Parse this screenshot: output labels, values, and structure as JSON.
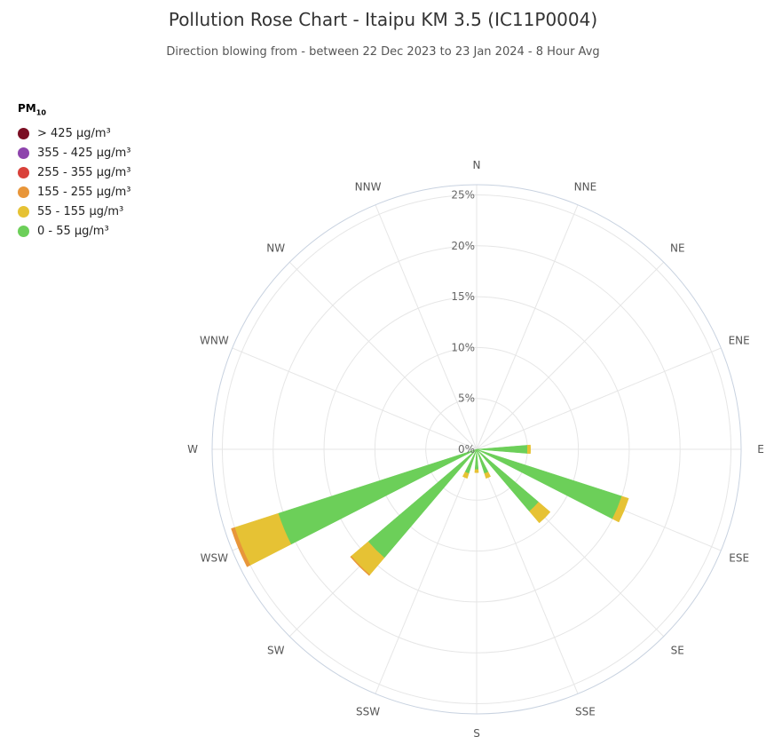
{
  "chart_data": {
    "type": "polar-stacked-bar",
    "title": "Pollution Rose Chart - Itaipu KM 3.5 (IC11P0004)",
    "subtitle": "Direction blowing from - between 22 Dec 2023 to 23 Jan 2024 - 8 Hour Avg",
    "legend_title": "PM",
    "legend_title_sub": "10",
    "legend_placement": "left",
    "directions": [
      "N",
      "NNE",
      "NE",
      "ENE",
      "E",
      "ESE",
      "SE",
      "SSE",
      "S",
      "SSW",
      "SW",
      "WSW",
      "W",
      "WNW",
      "NW",
      "NNW"
    ],
    "radial_ticks": [
      "0%",
      "5%",
      "10%",
      "15%",
      "20%",
      "25%"
    ],
    "rmax": 26,
    "unit": "%",
    "series": [
      {
        "name": "0 - 55 µg/m³",
        "color": "#6ccf59",
        "values": [
          0,
          0,
          0,
          0,
          5,
          15,
          8,
          2.5,
          2,
          2.5,
          14,
          20.5,
          0,
          0,
          0,
          0
        ]
      },
      {
        "name": "55 - 155 µg/m³",
        "color": "#e6c234",
        "values": [
          0,
          0,
          0,
          0,
          0.3,
          0.7,
          1.5,
          0.5,
          0.3,
          0.5,
          2.2,
          4.5,
          0,
          0,
          0,
          0
        ]
      },
      {
        "name": "155 - 255 µg/m³",
        "color": "#e8963a",
        "values": [
          0,
          0,
          0,
          0,
          0,
          0,
          0,
          0,
          0,
          0,
          0.1,
          0.35,
          0,
          0,
          0,
          0
        ]
      },
      {
        "name": "255 - 355 µg/m³",
        "color": "#d9413a",
        "values": [
          0,
          0,
          0,
          0,
          0,
          0,
          0,
          0,
          0,
          0,
          0,
          0,
          0,
          0,
          0,
          0
        ]
      },
      {
        "name": "355 - 425 µg/m³",
        "color": "#8e44ad",
        "values": [
          0,
          0,
          0,
          0,
          0,
          0,
          0,
          0,
          0,
          0,
          0,
          0,
          0,
          0,
          0,
          0
        ]
      },
      {
        "name": "> 425 µg/m³",
        "color": "#7b0e23",
        "values": [
          0,
          0,
          0,
          0,
          0,
          0,
          0,
          0,
          0,
          0,
          0,
          0,
          0,
          0,
          0,
          0
        ]
      }
    ]
  }
}
